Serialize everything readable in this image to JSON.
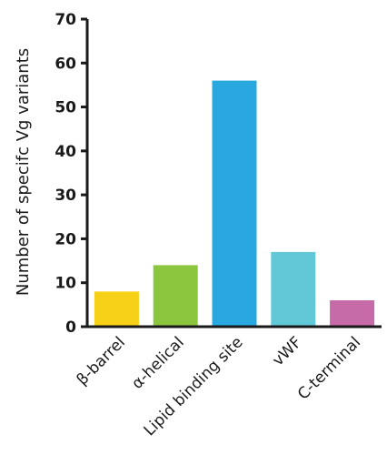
{
  "chart_data": {
    "type": "bar",
    "title": "",
    "xlabel": "",
    "ylabel": "Number of specifc Vg variants",
    "categories": [
      "β-barrel",
      "α-helical",
      "Lipid binding site",
      "vWF",
      "C-terminal"
    ],
    "values": [
      8,
      14,
      56,
      17,
      6
    ],
    "colors": [
      "#f7d117",
      "#8cc63f",
      "#29a8e0",
      "#62c8d8",
      "#c66aa8"
    ],
    "ylim": [
      0,
      70
    ],
    "yticks": [
      "0",
      "10",
      "20",
      "30",
      "40",
      "50",
      "60",
      "70"
    ],
    "grid": false,
    "legend": "none"
  }
}
